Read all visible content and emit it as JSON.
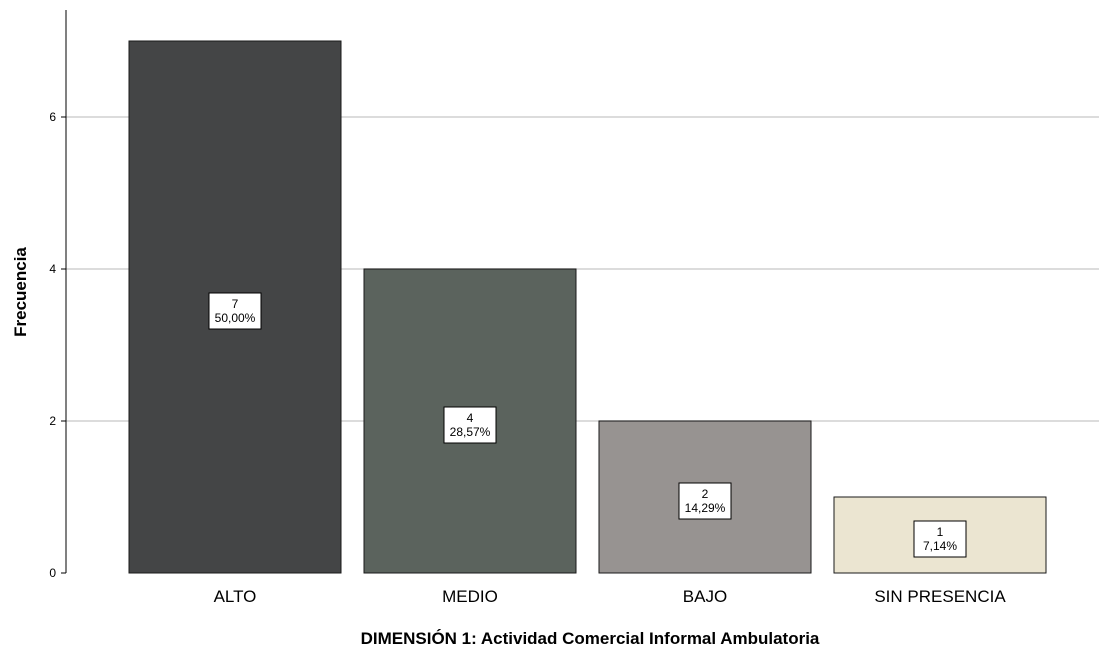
{
  "chart_data": {
    "type": "bar",
    "categories": [
      "ALTO",
      "MEDIO",
      "BAJO",
      "SIN PRESENCIA"
    ],
    "values": [
      7,
      4,
      2,
      1
    ],
    "percentages": [
      "50,00%",
      "28,57%",
      "14,29%",
      "7,14%"
    ],
    "colors": [
      "#444546",
      "#5b635d",
      "#979391",
      "#ebe5d1"
    ],
    "xlabel": "DIMENSIÓN 1: Actividad Comercial Informal Ambulatoria",
    "ylabel": "Frecuencia",
    "ylim": [
      0,
      7
    ],
    "yticks": [
      0,
      2,
      4,
      6
    ],
    "grid": true
  }
}
